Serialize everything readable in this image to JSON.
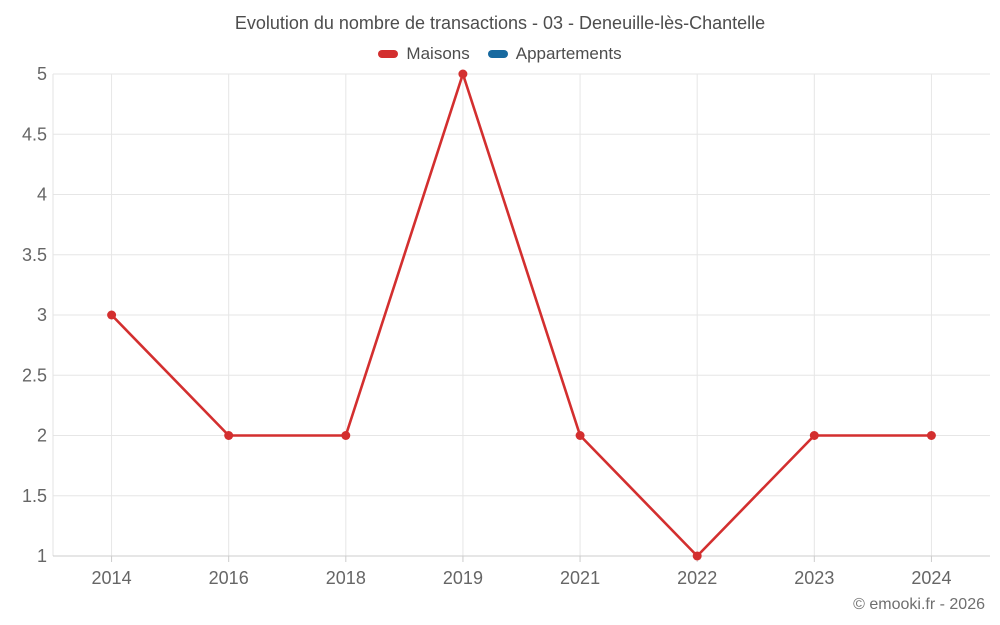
{
  "title": "Evolution du nombre de transactions - 03 - Deneuille-lès-Chantelle",
  "credit": "© emooki.fr - 2026",
  "legend": [
    {
      "label": "Maisons",
      "color": "#d32f2f"
    },
    {
      "label": "Appartements",
      "color": "#17699f"
    }
  ],
  "colors": {
    "gridline": "#e6e6e6",
    "axis_line": "#cccccc",
    "y_axis_line": "#e3e3e3",
    "tick": "#cccccc",
    "axis_label": "#666666",
    "title_text": "#4d4d4d"
  },
  "chart_data": {
    "type": "line",
    "title": "Evolution du nombre de transactions - 03 - Deneuille-lès-Chantelle",
    "categories": [
      "2014",
      "2016",
      "2018",
      "2019",
      "2021",
      "2022",
      "2023",
      "2024"
    ],
    "series": [
      {
        "name": "Maisons",
        "color": "#d32f2f",
        "values": [
          3,
          2,
          2,
          5,
          2,
          1,
          2,
          2
        ]
      },
      {
        "name": "Appartements",
        "color": "#17699f",
        "values": []
      }
    ],
    "xlabel": "",
    "ylabel": "",
    "ylim": [
      1,
      5
    ],
    "ytick_step": 0.5,
    "grid": true,
    "legend_position": "top",
    "annotations": [
      "© emooki.fr - 2026"
    ]
  }
}
